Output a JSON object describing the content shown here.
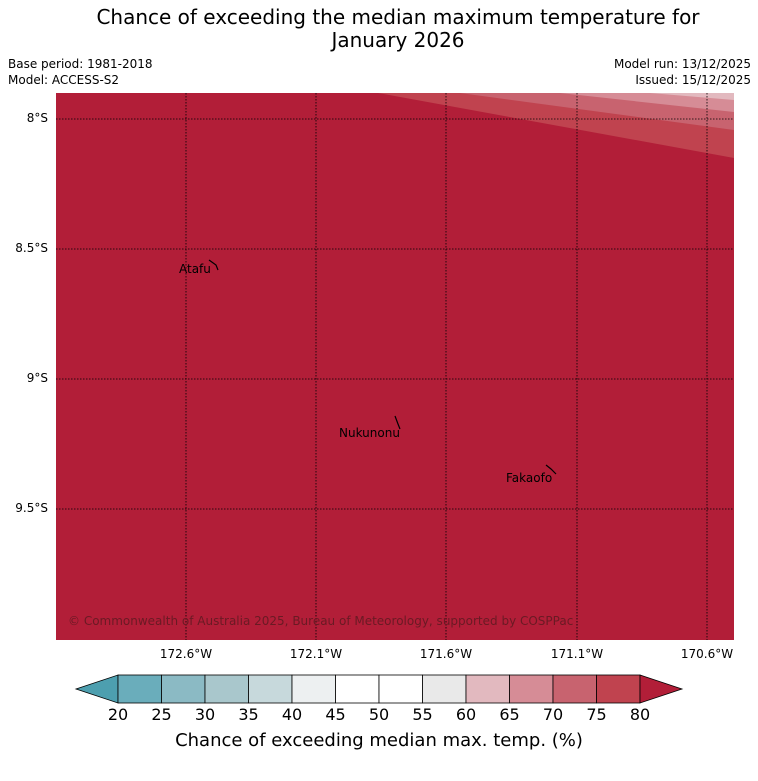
{
  "title_line1": "Chance of exceeding the median maximum temperature for",
  "title_line2": "January 2026",
  "base_period": "Base period: 1981-2018",
  "model": "Model: ACCESS-S2",
  "model_run": "Model run: 13/12/2025",
  "issued": "Issued: 15/12/2025",
  "map": {
    "lat_labels": [
      "8°S",
      "8.5°S",
      "9°S",
      "9.5°S"
    ],
    "lon_labels": [
      "172.6°W",
      "172.1°W",
      "171.6°W",
      "171.1°W",
      "170.6°W"
    ],
    "places": [
      "Atafu",
      "Nukunonu",
      "Fakaofo"
    ],
    "copyright": "© Commonwealth of Australia 2025, Bureau of Meteorology, supported by COSPPac",
    "base_color": "#b21e38"
  },
  "colorbar": {
    "ticks": [
      "20",
      "25",
      "30",
      "35",
      "40",
      "45",
      "50",
      "55",
      "60",
      "65",
      "70",
      "75",
      "80"
    ],
    "colors": [
      "#6aadbb",
      "#8bbac4",
      "#a9c7cc",
      "#c7d9dc",
      "#edf0f1",
      "#ffffff",
      "#ffffff",
      "#e9e9e9",
      "#e2b9bf",
      "#d68c96",
      "#c8636f",
      "#c0434f"
    ],
    "under_color": "#4d9faf",
    "over_color": "#b21e38",
    "label": "Chance of exceeding median max. temp. (%)"
  }
}
